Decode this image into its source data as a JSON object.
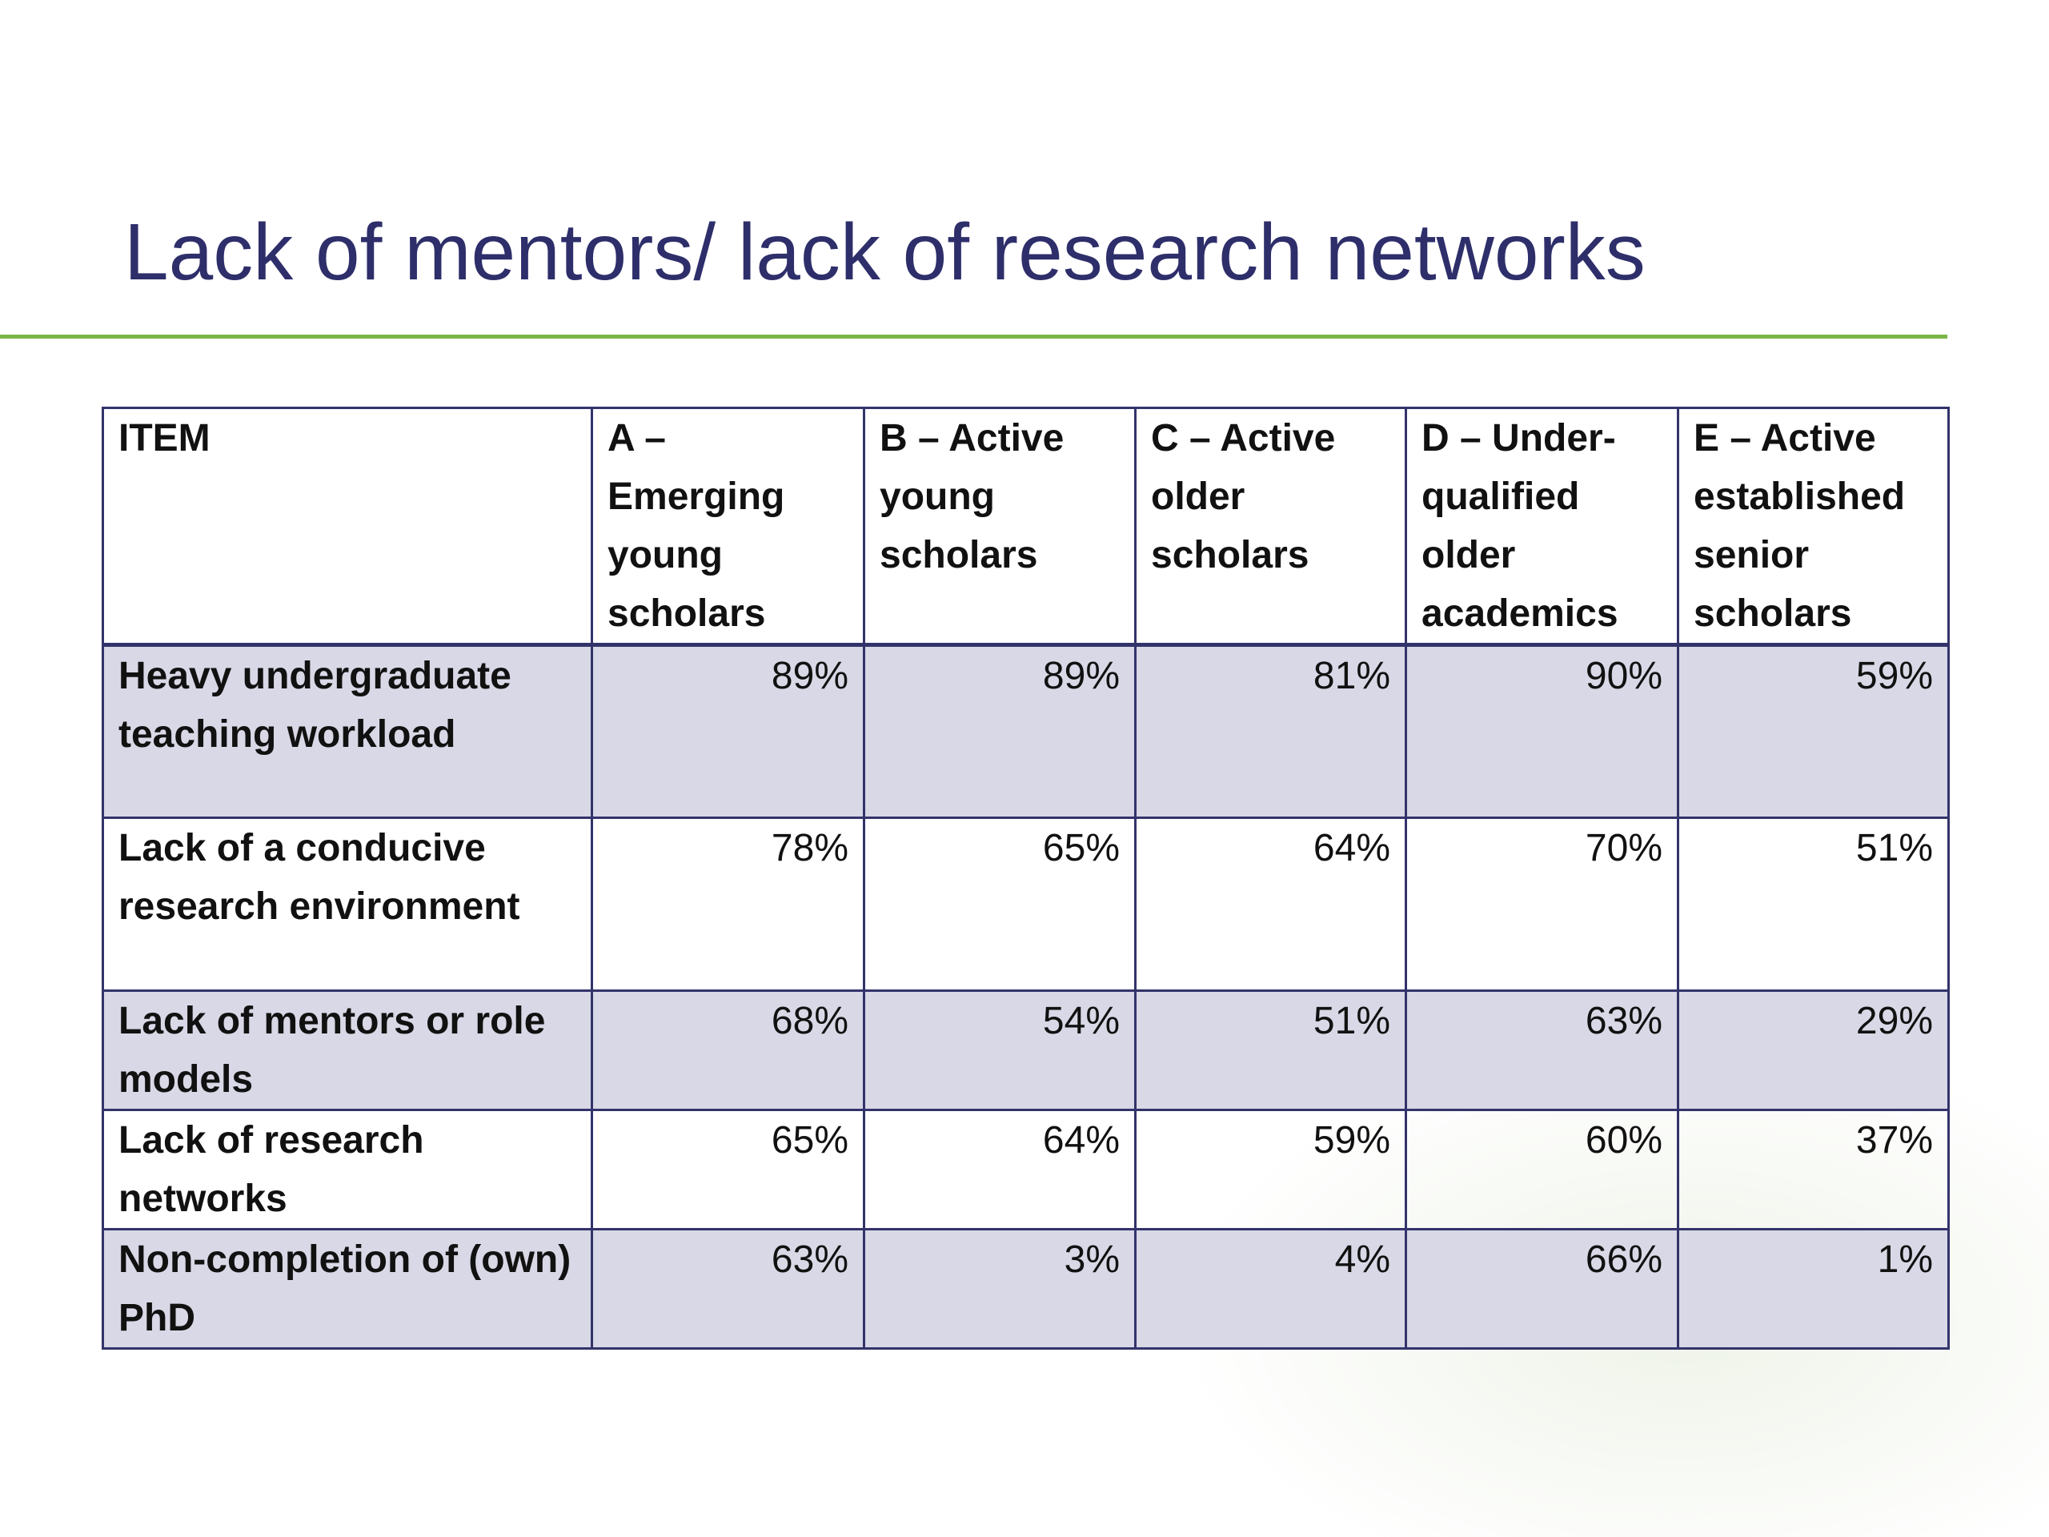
{
  "title": "Lack of mentors/ lack of research networks",
  "table": {
    "header": [
      "ITEM",
      "A – Emerging young scholars",
      "B – Active young scholars",
      "C – Active older scholars",
      "D – Under-qualified older academics",
      "E – Active established senior scholars"
    ],
    "rows": [
      [
        "Heavy undergraduate teaching workload",
        "89%",
        "89%",
        "81%",
        "90%",
        "59%"
      ],
      [
        "Lack of a conducive research environment",
        "78%",
        "65%",
        "64%",
        "70%",
        "51%"
      ],
      [
        "Lack of mentors or role models",
        "68%",
        "54%",
        "51%",
        "63%",
        "29%"
      ],
      [
        "Lack of research networks",
        "65%",
        "64%",
        "59%",
        "60%",
        "37%"
      ],
      [
        "Non-completion of (own) PhD",
        "63%",
        "3%",
        "4%",
        "66%",
        "1%"
      ]
    ]
  }
}
